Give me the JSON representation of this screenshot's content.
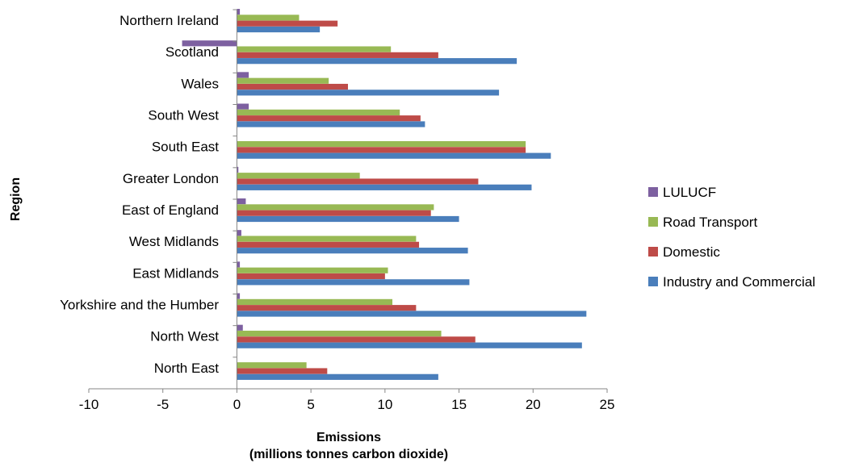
{
  "chart_data": {
    "type": "bar",
    "orientation": "horizontal",
    "title": "",
    "ylabel": "Region",
    "xlabel_lines": [
      "Emissions",
      "(millions tonnes carbon dioxide)"
    ],
    "xlim": [
      -10,
      25
    ],
    "xticks": [
      -10,
      -5,
      0,
      5,
      10,
      15,
      20,
      25
    ],
    "grid": false,
    "legend_position": "right",
    "categories": [
      "North East",
      "North West",
      "Yorkshire and the Humber",
      "East Midlands",
      "West Midlands",
      "East of England",
      "Greater London",
      "South East",
      "South West",
      "Wales",
      "Scotland",
      "Northern Ireland"
    ],
    "series": [
      {
        "name": "Industry and Commercial",
        "color": "#4a7ebb",
        "values": [
          13.6,
          23.3,
          23.6,
          15.7,
          15.6,
          15.0,
          19.9,
          21.2,
          12.7,
          17.7,
          18.9,
          5.6
        ]
      },
      {
        "name": "Domestic",
        "color": "#be4b48",
        "values": [
          6.1,
          16.1,
          12.1,
          10.0,
          12.3,
          13.1,
          16.3,
          19.5,
          12.4,
          7.5,
          13.6,
          6.8
        ]
      },
      {
        "name": "Road Transport",
        "color": "#98b954",
        "values": [
          4.7,
          13.8,
          10.5,
          10.2,
          12.1,
          13.3,
          8.3,
          19.5,
          11.0,
          6.2,
          10.4,
          4.2
        ]
      },
      {
        "name": "LULUCF",
        "color": "#7d60a0",
        "values": [
          0.0,
          0.4,
          0.2,
          0.2,
          0.3,
          0.6,
          0.1,
          0.0,
          0.8,
          0.8,
          -3.7,
          0.2
        ]
      }
    ],
    "legend_order": [
      "LULUCF",
      "Road Transport",
      "Domestic",
      "Industry and Commercial"
    ]
  }
}
